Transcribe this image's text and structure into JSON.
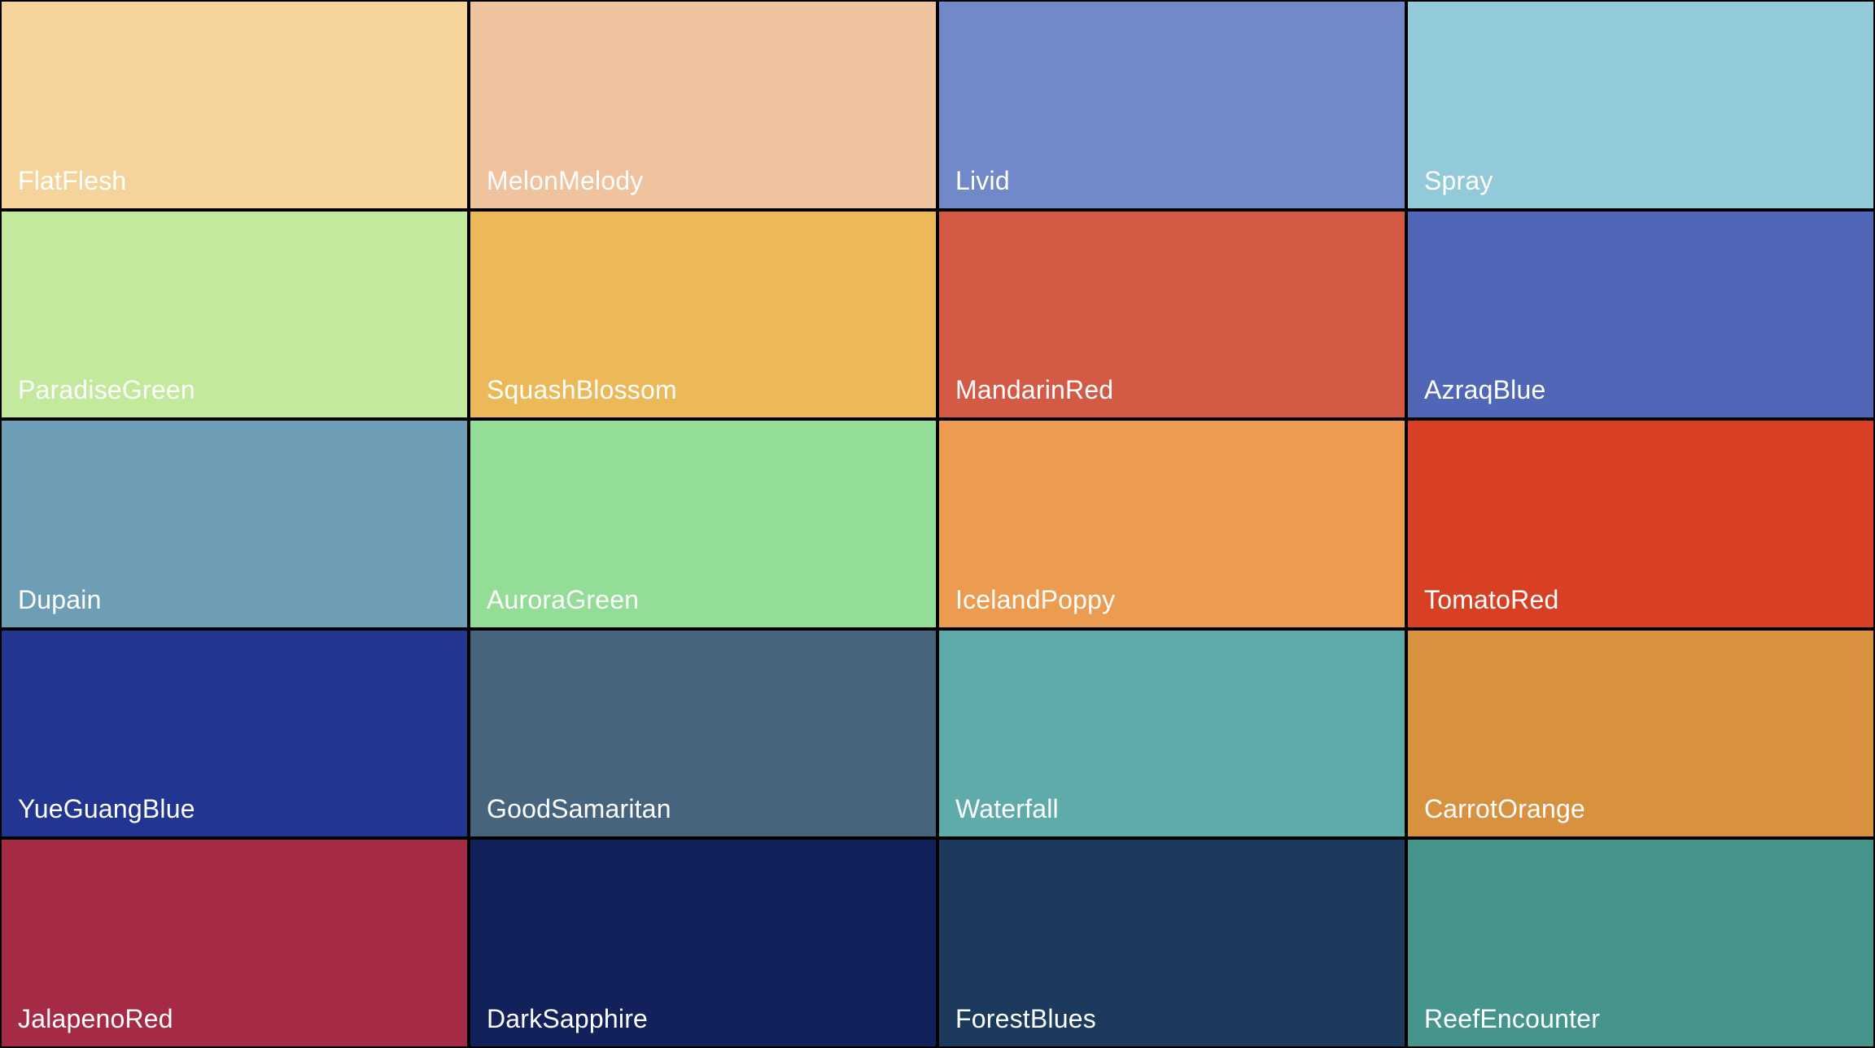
{
  "swatches": [
    {
      "name": "FlatFlesh",
      "color": "#F4D49B"
    },
    {
      "name": "MelonMelody",
      "color": "#EFC39D"
    },
    {
      "name": "Livid",
      "color": "#7189C9"
    },
    {
      "name": "Spray",
      "color": "#93CADA"
    },
    {
      "name": "ParadiseGreen",
      "color": "#C2E99C"
    },
    {
      "name": "SquashBlossom",
      "color": "#EBB957"
    },
    {
      "name": "MandarinRed",
      "color": "#D35B46"
    },
    {
      "name": "AzraqBlue",
      "color": "#5067B7"
    },
    {
      "name": "Dupain",
      "color": "#6E9EB5"
    },
    {
      "name": "AuroraGreen",
      "color": "#94DD97"
    },
    {
      "name": "IcelandPoppy",
      "color": "#EB9C50"
    },
    {
      "name": "TomatoRed",
      "color": "#D74023"
    },
    {
      "name": "YueGuangBlue",
      "color": "#223591"
    },
    {
      "name": "GoodSamaritan",
      "color": "#47647E"
    },
    {
      "name": "Waterfall",
      "color": "#5EABA9"
    },
    {
      "name": "CarrotOrange",
      "color": "#D8913F"
    },
    {
      "name": "JalapenoRed",
      "color": "#A52A43"
    },
    {
      "name": "DarkSapphire",
      "color": "#13215B"
    },
    {
      "name": "ForestBlues",
      "color": "#1C3A5E"
    },
    {
      "name": "ReefEncounter",
      "color": "#46958D"
    }
  ]
}
